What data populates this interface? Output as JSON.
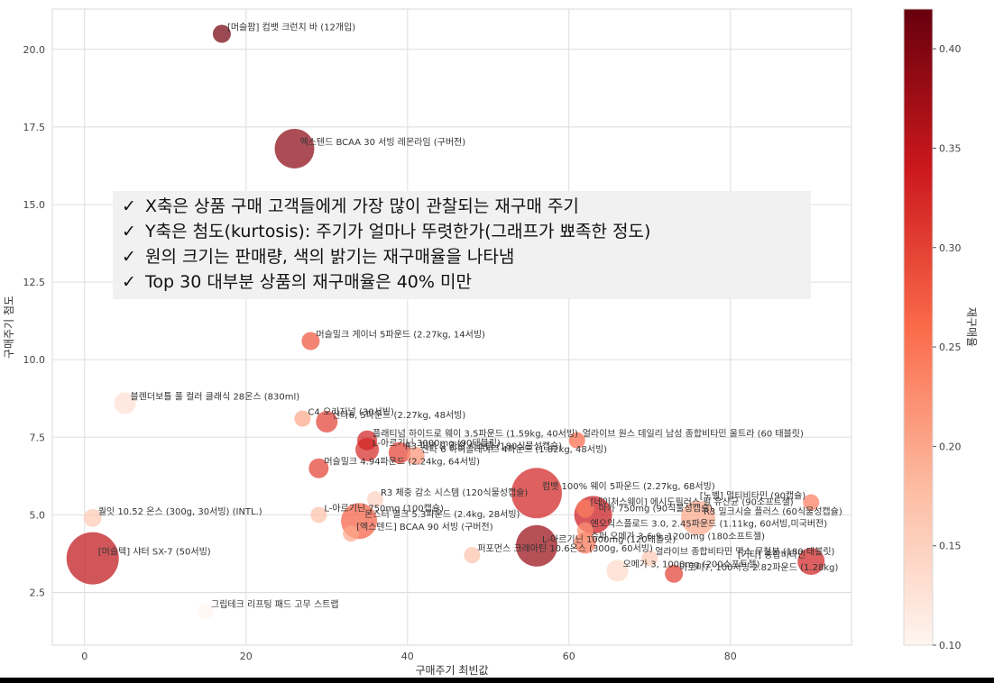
{
  "chart_data": {
    "type": "scatter",
    "xlabel": "구매주기 최빈값",
    "ylabel": "구매주기 첨도",
    "colorbar_label": "재구매율",
    "xlim": [
      -4,
      95
    ],
    "ylim": [
      0.8,
      21.3
    ],
    "xticks": [
      0,
      20,
      40,
      60,
      80
    ],
    "yticks": [
      2.5,
      5.0,
      7.5,
      10.0,
      12.5,
      15.0,
      17.5,
      20.0
    ],
    "colorbar_range": [
      0.1,
      0.42
    ],
    "colorbar_ticks": [
      0.1,
      0.15,
      0.2,
      0.25,
      0.3,
      0.35,
      0.4
    ],
    "grid": true,
    "colormap": "Reds",
    "points": [
      {
        "label": "[머슬팜] 컴뱃 크런치 바 (12개입)",
        "x": 17,
        "y": 20.5,
        "size": 20,
        "rate": 0.41
      },
      {
        "label": "엑스텐드 BCAA 30 서빙 레몬라임 (구버전)",
        "x": 26,
        "y": 16.8,
        "size": 44,
        "rate": 0.39
      },
      {
        "label": "머슬밀크 게이너 5파운드 (2.27kg, 14서빙)",
        "x": 28,
        "y": 10.6,
        "size": 20,
        "rate": 0.28
      },
      {
        "label": "블렌더보틀 풀 컬러 클래식 28온스 (830ml)",
        "x": 5,
        "y": 8.6,
        "size": 24,
        "rate": 0.13
      },
      {
        "label": "C4 오리지널 (30서빙)",
        "x": 27,
        "y": 8.1,
        "size": 18,
        "rate": 0.2
      },
      {
        "label": "신타6, 5파운드 (2.27kg, 48서빙)",
        "x": 30,
        "y": 8.0,
        "size": 24,
        "rate": 0.3
      },
      {
        "label": "플래티넘 하이드로 웨이 3.5파운드 (1.59kg, 40서빙)",
        "x": 35,
        "y": 7.4,
        "size": 22,
        "rate": 0.33
      },
      {
        "label": "L-아르기닌 3000mg (90태블릿)",
        "x": 35,
        "y": 7.1,
        "size": 26,
        "rate": 0.32
      },
      {
        "label": "R3 피부 & 관절 시스템 (180식물성캡슐)",
        "x": 39,
        "y": 7.0,
        "size": 24,
        "rate": 0.3
      },
      {
        "label": "신타 6 아이솔레이트 4파운드 (1.82kg, 48서빙)",
        "x": 41,
        "y": 6.9,
        "size": 20,
        "rate": 0.22
      },
      {
        "label": "머슬밀크 4.94파운드 (2.24kg, 64서빙)",
        "x": 29,
        "y": 6.5,
        "size": 22,
        "rate": 0.3
      },
      {
        "label": "얼라이브 원스 데일리 남성 종합비타민 울트라 (60 태블릿)",
        "x": 61,
        "y": 7.4,
        "size": 18,
        "rate": 0.26
      },
      {
        "label": "컴뱃 100% 웨이 5파운드 (2.27kg, 68서빙)",
        "x": 56,
        "y": 5.7,
        "size": 56,
        "rate": 0.33
      },
      {
        "label": "R3 체중 감소 시스템 (120식물성캡슐)",
        "x": 36,
        "y": 5.5,
        "size": 18,
        "rate": 0.15
      },
      {
        "label": "[네이처스웨이] 에시도필러스 펄 유산균 (90소프트젤)",
        "x": 62,
        "y": 5.2,
        "size": 20,
        "rate": 0.24
      },
      {
        "label": "L-아르기닌 750mg (100캡슐)",
        "x": 29,
        "y": 5.0,
        "size": 18,
        "rate": 0.17
      },
      {
        "label": "마카 750mg (90식물성캡슐)",
        "x": 63,
        "y": 5.0,
        "size": 42,
        "rate": 0.34
      },
      {
        "label": "R3 밀크시슬 플러스 (60식물성캡슐)",
        "x": 76,
        "y": 4.9,
        "size": 38,
        "rate": 0.2
      },
      {
        "label": "퀄잇 10.52 온스 (300g, 30서빙) (INTL.)",
        "x": 1,
        "y": 4.9,
        "size": 20,
        "rate": 0.16
      },
      {
        "label": "[노벨] 멀티비타민 (90캡슐)",
        "x": 90,
        "y": 5.4,
        "size": 18,
        "rate": 0.24
      },
      {
        "label": "몬스터 밀크 5.3파운드 (2.4kg, 28서빙)",
        "x": 34,
        "y": 4.8,
        "size": 40,
        "rate": 0.27
      },
      {
        "label": "엔오익스플로드 3.0, 2.45파운드 (1.11kg, 60서빙,미국버전)",
        "x": 62,
        "y": 4.5,
        "size": 18,
        "rate": 0.22
      },
      {
        "label": "[엑스텐드] BCAA 90 서빙 (구버전)",
        "x": 33,
        "y": 4.4,
        "size": 18,
        "rate": 0.2
      },
      {
        "label": "L-아르기닌 1000mg (120태블릿)",
        "x": 56,
        "y": 4.0,
        "size": 46,
        "rate": 0.38
      },
      {
        "label": "슈퍼 오메가 3-6-9, 1200mg (180소프트젤)",
        "x": 62,
        "y": 4.1,
        "size": 24,
        "rate": 0.25
      },
      {
        "label": "퍼포먼스 크레아틴 10.6온스 (300g, 60서빙)",
        "x": 48,
        "y": 3.7,
        "size": 18,
        "rate": 0.17
      },
      {
        "label": "[머슬텍] 샤터 SX-7 (50서빙)",
        "x": 1,
        "y": 3.6,
        "size": 58,
        "rate": 0.35
      },
      {
        "label": "얼라이브 종합비타민 맥스 무철분 (180 태블릿)",
        "x": 70,
        "y": 3.6,
        "size": 18,
        "rate": 0.16
      },
      {
        "label": "[기타] 종합비타민",
        "x": 90,
        "y": 3.5,
        "size": 30,
        "rate": 0.33
      },
      {
        "label": "오메가 3, 1000mg (200소프트젤)",
        "x": 66,
        "y": 3.2,
        "size": 24,
        "rate": 0.14
      },
      {
        "label": "아토미7, 100서빙 2.82파운드 (1.28kg)",
        "x": 73,
        "y": 3.1,
        "size": 20,
        "rate": 0.3
      },
      {
        "label": "그립테크 리프팅 패드 고무 스트랩",
        "x": 15,
        "y": 1.9,
        "size": 18,
        "rate": 0.1
      }
    ]
  },
  "callout": {
    "check": "✓",
    "lines": [
      "X축은 상품 구매 고객들에게 가장 많이 관찰되는 재구매 주기",
      "Y축은 첨도(kurtosis): 주기가 얼마나 뚜렷한가(그래프가 뾰족한 정도)",
      "원의 크기는 판매량, 색의 밝기는 재구매율을 나타냄",
      "Top 30 대부분 상품의 재구매율은 40% 미만"
    ]
  }
}
